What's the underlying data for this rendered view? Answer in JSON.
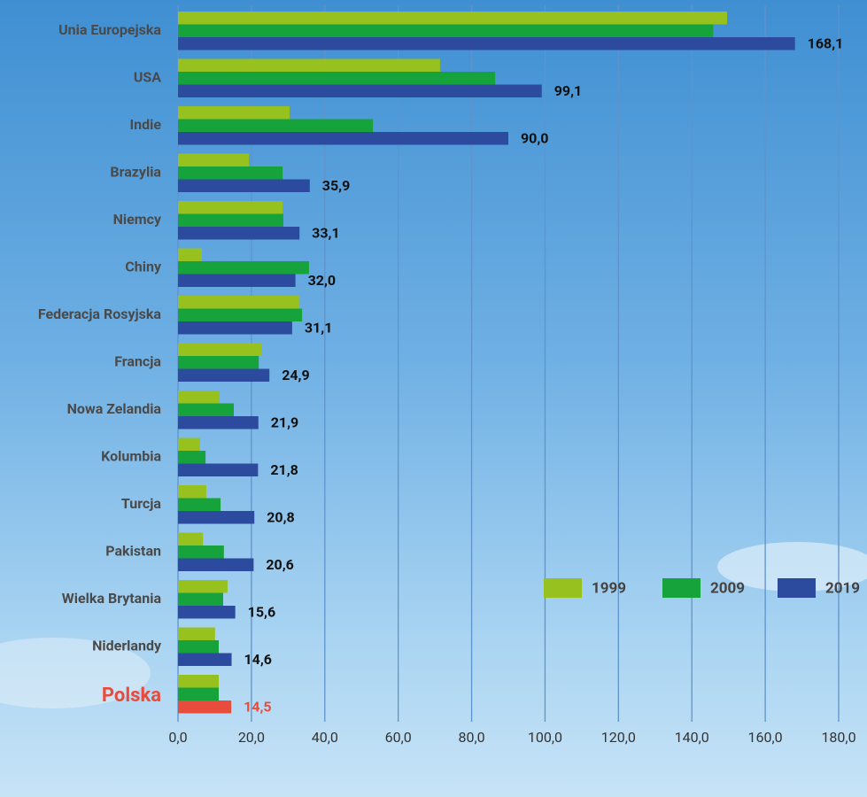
{
  "chart_data": {
    "type": "bar",
    "orientation": "horizontal",
    "categories": [
      "Unia Europejska",
      "USA",
      "Indie",
      "Brazylia",
      "Niemcy",
      "Chiny",
      "Federacja Rosyjska",
      "Francja",
      "Nowa Zelandia",
      "Kolumbia",
      "Turcja",
      "Pakistan",
      "Wielka Brytania",
      "Niderlandy",
      "Polska"
    ],
    "series": [
      {
        "name": "1999",
        "color": "#97c11f",
        "values": [
          149.6,
          71.4,
          30.4,
          19.3,
          28.5,
          6.5,
          33.1,
          22.9,
          11.3,
          6.0,
          7.7,
          6.8,
          13.5,
          10.1,
          11.1
        ]
      },
      {
        "name": "2009",
        "color": "#17a33b",
        "values": [
          145.8,
          86.4,
          53.1,
          28.5,
          28.7,
          35.7,
          33.8,
          22.0,
          15.2,
          7.5,
          11.6,
          12.5,
          12.3,
          11.1,
          11.1
        ]
      },
      {
        "name": "2019",
        "color": "#2c4b9e",
        "values": [
          168.1,
          99.1,
          90.0,
          35.9,
          33.1,
          32.0,
          31.1,
          24.9,
          21.9,
          21.8,
          20.8,
          20.6,
          15.6,
          14.6,
          14.5
        ],
        "value_labels": [
          "168,1",
          "99,1",
          "90,0",
          "35,9",
          "33,1",
          "32,0",
          "31,1",
          "24,9",
          "21,9",
          "21,8",
          "20,8",
          "20,6",
          "15,6",
          "14,6",
          "14,5"
        ]
      }
    ],
    "highlight": {
      "category": 14,
      "color": "#e84c3d"
    },
    "xlim": [
      0,
      180
    ],
    "xticks": [
      {
        "value": 0,
        "label": "0,0"
      },
      {
        "value": 20,
        "label": "20,0"
      },
      {
        "value": 40,
        "label": "40,0"
      },
      {
        "value": 60,
        "label": "60,0"
      },
      {
        "value": 80,
        "label": "80,0"
      },
      {
        "value": 100,
        "label": "100,0"
      },
      {
        "value": 120,
        "label": "120,0"
      },
      {
        "value": 140,
        "label": "140,0"
      },
      {
        "value": 160,
        "label": "160,0"
      },
      {
        "value": 180,
        "label": "180,0"
      }
    ],
    "grid": true,
    "legend": "bottom-right"
  }
}
